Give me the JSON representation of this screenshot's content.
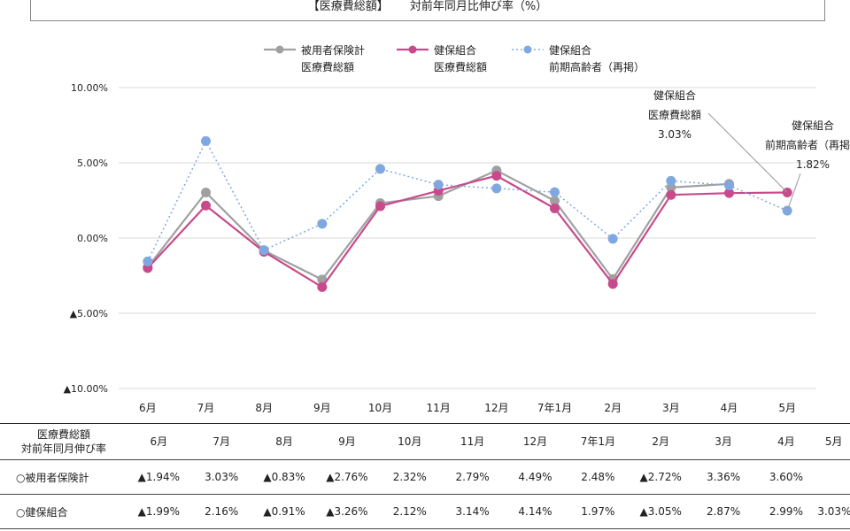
{
  "title": {
    "left": "【医療費総額】",
    "right": "対前年同月比伸び率（%）"
  },
  "colors": {
    "series1": "#a0a0a0",
    "series2": "#c84a8c",
    "series3": "#80a8e0",
    "grid": "#d9d9d9",
    "callout_line": "#999999"
  },
  "legend": [
    {
      "line1": "被用者保険計",
      "line2": "医療費総額"
    },
    {
      "line1": "健保組合",
      "line2": "医療費総額"
    },
    {
      "line1": "健保組合",
      "line2": "前期高齢者（再掲）"
    }
  ],
  "chart_data": {
    "type": "line",
    "categories": [
      "6月",
      "7月",
      "8月",
      "9月",
      "10月",
      "11月",
      "12月",
      "7年1月",
      "2月",
      "3月",
      "4月",
      "5月"
    ],
    "series": [
      {
        "name": "被用者保険計 医療費総額",
        "style": "solid",
        "values": [
          -1.94,
          3.03,
          -0.83,
          -2.76,
          2.32,
          2.79,
          4.49,
          2.48,
          -2.72,
          3.36,
          3.6,
          null
        ]
      },
      {
        "name": "健保組合 医療費総額",
        "style": "solid",
        "values": [
          -1.99,
          2.16,
          -0.91,
          -3.26,
          2.12,
          3.14,
          4.14,
          1.97,
          -3.05,
          2.87,
          2.99,
          3.03
        ]
      },
      {
        "name": "健保組合 前期高齢者（再掲）",
        "style": "dotted",
        "values": [
          -1.55,
          6.45,
          -0.8,
          0.95,
          4.6,
          3.55,
          3.3,
          3.05,
          -0.05,
          3.8,
          3.5,
          1.82
        ]
      }
    ],
    "ylim": [
      -10,
      10
    ],
    "yticks": [
      {
        "value": 10,
        "label": "10.00%"
      },
      {
        "value": 5,
        "label": "5.00%"
      },
      {
        "value": 0,
        "label": "0.00%"
      },
      {
        "value": -5,
        "label": "▲5.00%"
      },
      {
        "value": -10,
        "label": "▲10.00%"
      }
    ],
    "grid": true,
    "legend_position": "top",
    "annotations": [
      {
        "lines": [
          "健保組合",
          "医療費総額",
          "3.03%"
        ],
        "series": 1,
        "point": 11
      },
      {
        "lines": [
          "健保組合",
          "前期高齢者（再掲）",
          "1.82%"
        ],
        "series": 2,
        "point": 11
      }
    ]
  },
  "table": {
    "header_label": [
      "医療費総額",
      "対前年同月伸び率"
    ],
    "columns": [
      "6月",
      "7月",
      "8月",
      "9月",
      "10月",
      "11月",
      "12月",
      "7年1月",
      "2月",
      "3月",
      "4月",
      "5月"
    ],
    "rows": [
      {
        "label": "○被用者保険計",
        "values": [
          "▲1.94%",
          "3.03%",
          "▲0.83%",
          "▲2.76%",
          "2.32%",
          "2.79%",
          "4.49%",
          "2.48%",
          "▲2.72%",
          "3.36%",
          "3.60%",
          ""
        ]
      },
      {
        "label": "○健保組合",
        "values": [
          "▲1.99%",
          "2.16%",
          "▲0.91%",
          "▲3.26%",
          "2.12%",
          "3.14%",
          "4.14%",
          "1.97%",
          "▲3.05%",
          "2.87%",
          "2.99%",
          "3.03%"
        ]
      }
    ]
  }
}
